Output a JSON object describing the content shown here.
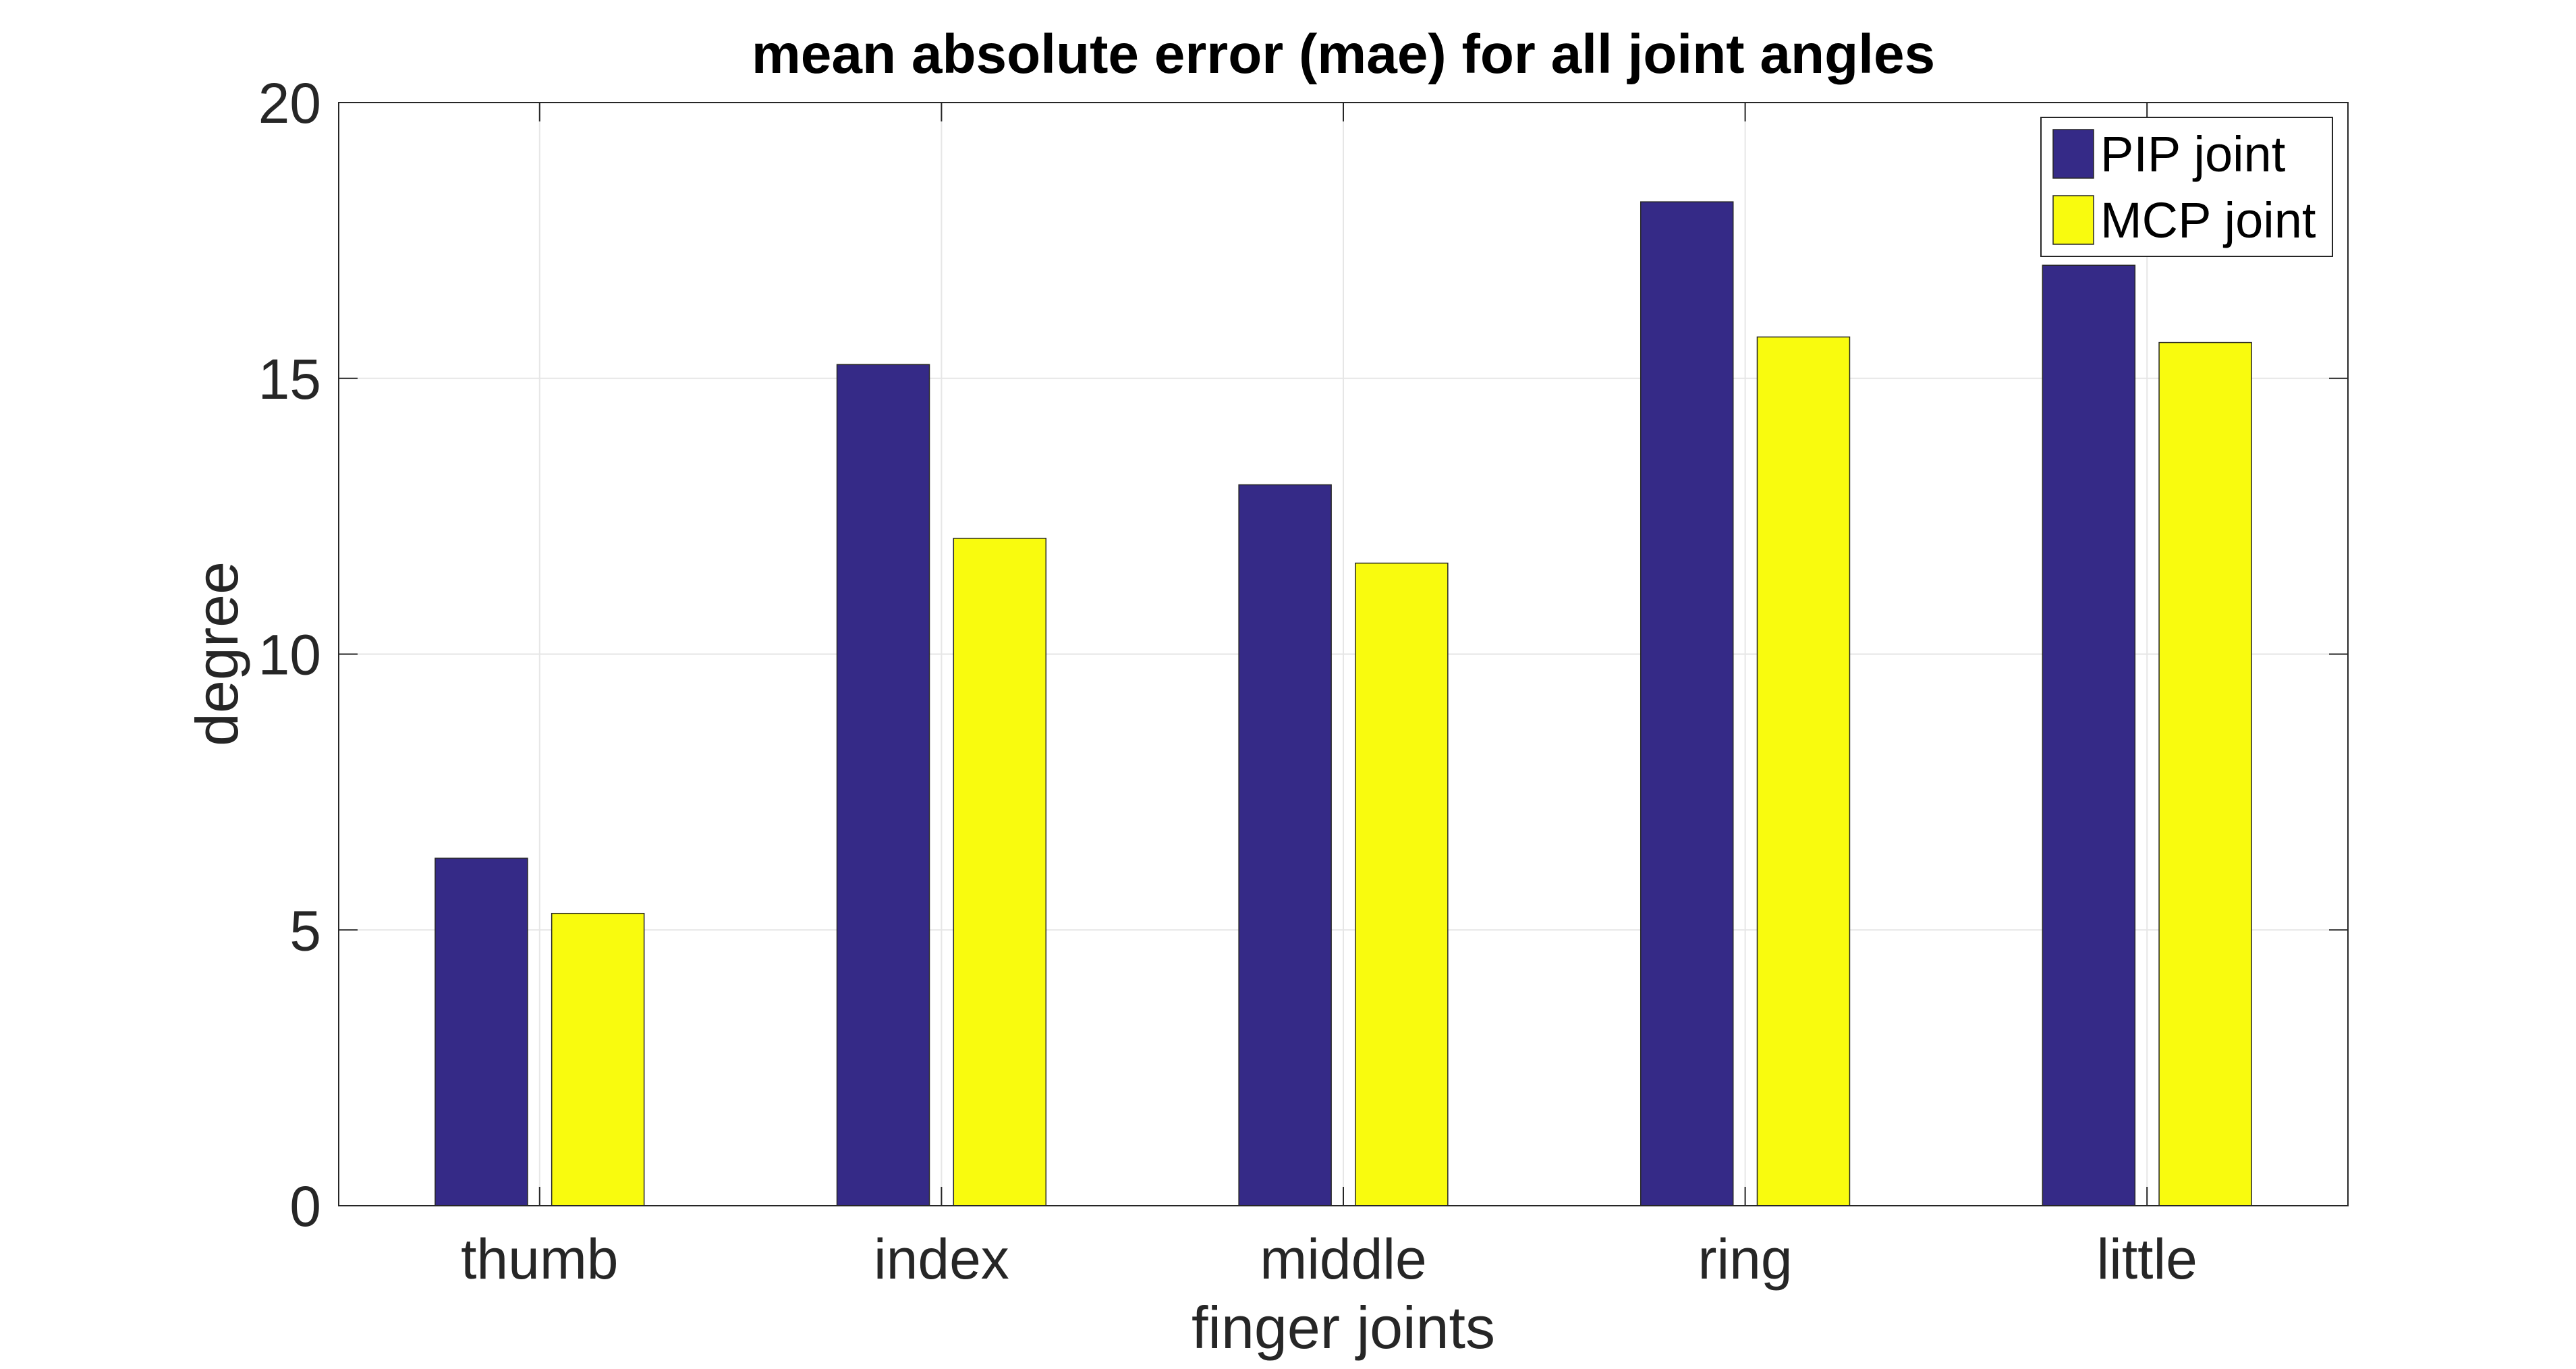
{
  "chart_data": {
    "type": "bar",
    "title": "mean absolute error (mae) for all joint angles",
    "xlabel": "finger joints",
    "ylabel": "degree",
    "categories": [
      "thumb",
      "index",
      "middle",
      "ring",
      "little"
    ],
    "series": [
      {
        "name": "PIP joint",
        "values": [
          6.3,
          15.25,
          13.07,
          18.2,
          17.05
        ],
        "color": "#352A87"
      },
      {
        "name": "MCP joint",
        "values": [
          5.3,
          12.1,
          11.65,
          15.75,
          15.65
        ],
        "color": "#F9FB0E"
      }
    ],
    "ylim": [
      0,
      20
    ],
    "yticks": [
      "0",
      "5",
      "10",
      "15",
      "20"
    ],
    "grid": true,
    "legend_position": "top-right"
  }
}
